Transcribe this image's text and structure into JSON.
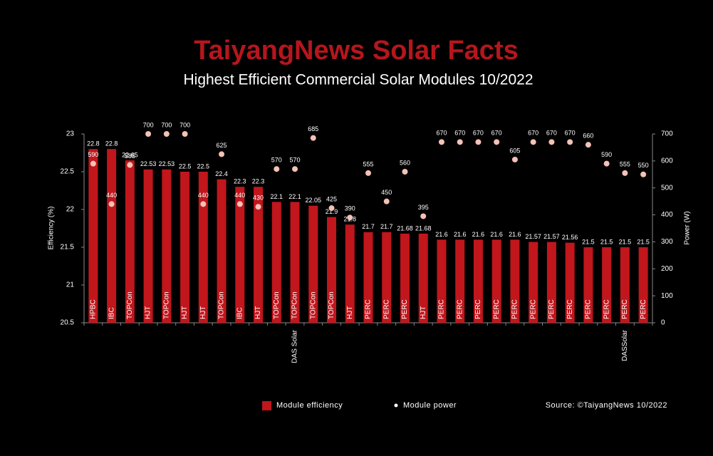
{
  "chart_data": {
    "type": "bar",
    "title": "TaiyangNews Solar Facts",
    "subtitle": "Highest Efficient Commercial Solar Modules 10/2022",
    "y_label": "Efficiency (%)",
    "y2_label": "Power (W)",
    "source": "Source: ©TaiyangNews 10/2022",
    "categories": [
      null,
      null,
      null,
      null,
      null,
      null,
      null,
      null,
      null,
      null,
      null,
      "DAS Solar",
      null,
      null,
      null,
      null,
      null,
      null,
      null,
      null,
      null,
      null,
      null,
      null,
      null,
      null,
      null,
      null,
      null,
      "DASSolar",
      null
    ],
    "technologies": [
      "HPBC",
      "IBC",
      "TOPCon",
      "HJT",
      "TOPCon",
      "HJT",
      "HJT",
      "TOPCon",
      "IBC",
      "HJT",
      "TOPCon",
      "TOPCon",
      "TOPCon",
      "TOPCon",
      "HJT",
      "PERC",
      "PERC",
      "PERC",
      "HJT",
      "PERC",
      "PERC",
      "PERC",
      "PERC",
      "PERC",
      "PERC",
      "PERC",
      "PERC",
      "PERC",
      "PERC",
      "PERC",
      "PERC"
    ],
    "series": [
      {
        "name": "Module efficiency",
        "color": "#c0161c",
        "mark": "bar",
        "values": [
          22.8,
          22.8,
          22.65,
          22.53,
          22.53,
          22.5,
          22.5,
          22.4,
          22.3,
          22.3,
          22.1,
          22.1,
          22.05,
          21.9,
          21.8,
          21.7,
          21.7,
          21.68,
          21.68,
          21.6,
          21.6,
          21.6,
          21.6,
          21.6,
          21.57,
          21.57,
          21.56,
          21.5,
          21.5,
          21.5,
          21.5
        ]
      },
      {
        "name": "Module power",
        "color": "#f4c2b6",
        "mark": "dot",
        "axis": "y2",
        "values": [
          590,
          440,
          585,
          700,
          700,
          700,
          440,
          625,
          440,
          430,
          570,
          570,
          685,
          425,
          390,
          555,
          450,
          560,
          395,
          670,
          670,
          670,
          670,
          605,
          670,
          670,
          670,
          660,
          590,
          555,
          550
        ]
      }
    ],
    "ylim": [
      20.5,
      23
    ],
    "yticks": [
      20.5,
      21,
      21.5,
      22,
      22.5,
      23
    ],
    "y2lim": [
      0,
      700
    ],
    "y2ticks": [
      0,
      100,
      200,
      300,
      400,
      500,
      600,
      700
    ]
  }
}
